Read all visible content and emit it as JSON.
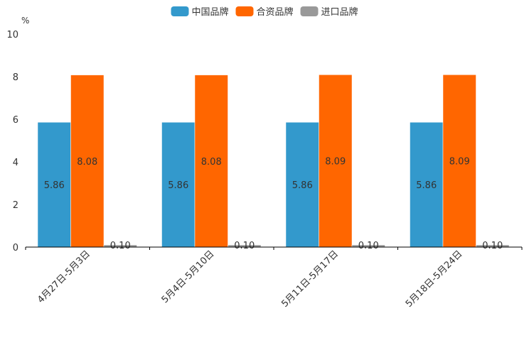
{
  "chart_data": {
    "type": "bar",
    "title": "",
    "ylabel": "%",
    "xlabel": "",
    "ylim": [
      0,
      10
    ],
    "yticks": [
      0,
      2,
      4,
      6,
      8,
      10
    ],
    "categories": [
      "4月27日-5月3日",
      "5月4日-5月10日",
      "5月11日-5月17日",
      "5月18日-5月24日"
    ],
    "series": [
      {
        "name": "中国品牌",
        "color": "#3399cc",
        "values": [
          5.86,
          5.86,
          5.86,
          5.86
        ],
        "labels": [
          "5.86",
          "5.86",
          "5.86",
          "5.86"
        ]
      },
      {
        "name": "合资品牌",
        "color": "#ff6600",
        "values": [
          8.08,
          8.08,
          8.09,
          8.09
        ],
        "labels": [
          "8.08",
          "8.08",
          "8.09",
          "8.09"
        ]
      },
      {
        "name": "进口品牌",
        "color": "#999999",
        "values": [
          0.1,
          0.1,
          0.1,
          0.1
        ],
        "labels": [
          "0.10",
          "0.10",
          "0.10",
          "0.10"
        ]
      }
    ],
    "legend_position": "top-center",
    "grid": false
  }
}
